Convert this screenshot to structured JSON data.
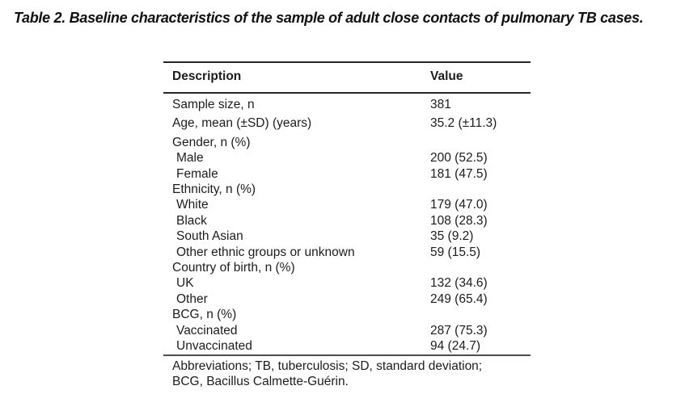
{
  "page": {
    "title": "Table 2. Baseline characteristics of the sample of adult close contacts of pulmonary TB cases."
  },
  "table": {
    "header": {
      "description": "Description",
      "value": "Value"
    },
    "rows": [
      {
        "label": "Sample size, n",
        "value": "381",
        "indent": false,
        "spaced": true
      },
      {
        "label": "Age, mean (±SD) (years)",
        "value": "35.2 (±11.3)",
        "indent": false,
        "spaced": true
      },
      {
        "label": "Gender, n (%)",
        "value": "",
        "indent": false,
        "spaced": false
      },
      {
        "label": "Male",
        "value": "200 (52.5)",
        "indent": true,
        "spaced": false
      },
      {
        "label": "Female",
        "value": "181 (47.5)",
        "indent": true,
        "spaced": false
      },
      {
        "label": "Ethnicity, n (%)",
        "value": "",
        "indent": false,
        "spaced": false
      },
      {
        "label": "White",
        "value": "179 (47.0)",
        "indent": true,
        "spaced": false
      },
      {
        "label": "Black",
        "value": "108 (28.3)",
        "indent": true,
        "spaced": false
      },
      {
        "label": "South Asian",
        "value": "35 (9.2)",
        "indent": true,
        "spaced": false
      },
      {
        "label": "Other ethnic groups or unknown",
        "value": "59 (15.5)",
        "indent": true,
        "spaced": false
      },
      {
        "label": "Country of birth, n (%)",
        "value": "",
        "indent": false,
        "spaced": false
      },
      {
        "label": "UK",
        "value": "132 (34.6)",
        "indent": true,
        "spaced": false
      },
      {
        "label": "Other",
        "value": "249 (65.4)",
        "indent": true,
        "spaced": false
      },
      {
        "label": "BCG, n (%)",
        "value": "",
        "indent": false,
        "spaced": false
      },
      {
        "label": "Vaccinated",
        "value": "287 (75.3)",
        "indent": true,
        "spaced": false
      },
      {
        "label": "Unvaccinated",
        "value": "94 (24.7)",
        "indent": true,
        "spaced": false
      }
    ],
    "footnote_lines": [
      "Abbreviations; TB, tuberculosis; SD, standard deviation;",
      "BCG, Bacillus Calmette-Guérin."
    ]
  },
  "colors": {
    "text": "#1c1c1c",
    "rule_dark": "#262626",
    "rule_footnote": "#4d4d4d",
    "background": "#ffffff"
  }
}
